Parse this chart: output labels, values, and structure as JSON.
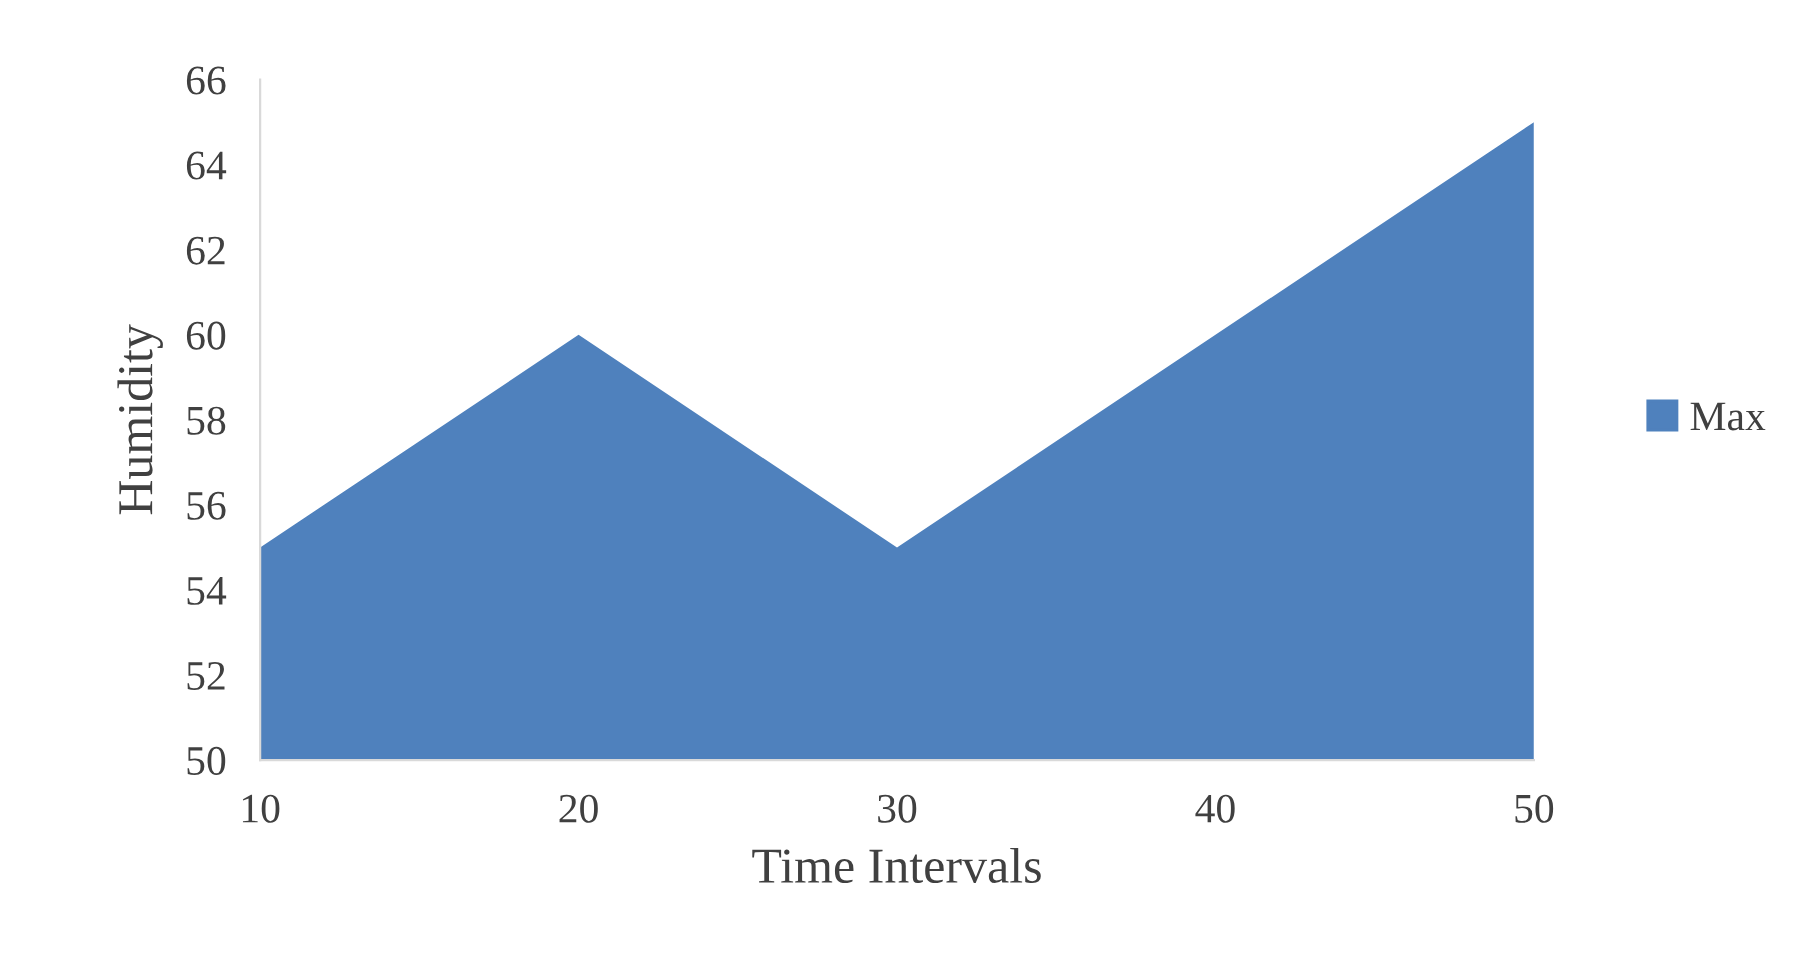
{
  "chart_data": {
    "type": "area",
    "xlabel": "Time Intervals",
    "ylabel": "Humidity",
    "categories": [
      "10",
      "20",
      "30",
      "40",
      "50"
    ],
    "series": [
      {
        "name": "Max",
        "color": "#4f81bd",
        "values": [
          55,
          60,
          55,
          60,
          65
        ]
      }
    ],
    "ylim": [
      50,
      66
    ],
    "yticks": [
      50,
      52,
      54,
      56,
      58,
      60,
      62,
      64,
      66
    ],
    "grid": false,
    "legend": "right"
  }
}
